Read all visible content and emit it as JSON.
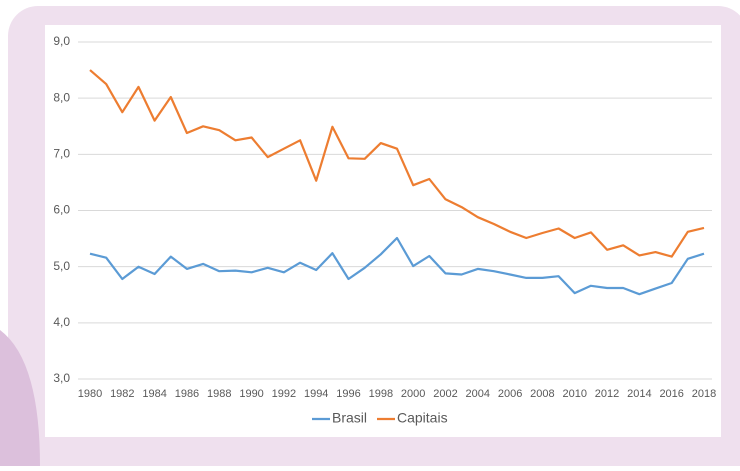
{
  "chart_data": {
    "type": "line",
    "categories": [
      "1980",
      null,
      "1982",
      null,
      "1984",
      null,
      "1986",
      null,
      "1988",
      null,
      "1990",
      null,
      "1992",
      null,
      "1994",
      null,
      "1996",
      null,
      "1998",
      null,
      "2000",
      null,
      "2002",
      null,
      "2004",
      null,
      "2006",
      null,
      "2008",
      null,
      "2010",
      null,
      "2012",
      null,
      "2014",
      null,
      "2016",
      null,
      "2018"
    ],
    "series": [
      {
        "name": "Brasil",
        "color": "#5b9bd5",
        "values": [
          5.23,
          5.16,
          4.78,
          5.0,
          4.87,
          5.18,
          4.96,
          5.05,
          4.92,
          4.93,
          4.9,
          4.98,
          4.9,
          5.07,
          4.94,
          5.24,
          4.78,
          4.98,
          5.22,
          5.51,
          5.01,
          5.19,
          4.88,
          4.86,
          4.96,
          4.92,
          4.86,
          4.8,
          4.8,
          4.83,
          4.53,
          4.66,
          4.62,
          4.62,
          4.51,
          4.61,
          4.71,
          5.14,
          5.23
        ]
      },
      {
        "name": "Capitais",
        "color": "#ed7d31",
        "values": [
          8.5,
          8.25,
          7.75,
          8.2,
          7.6,
          8.02,
          7.38,
          7.5,
          7.43,
          7.25,
          7.3,
          6.95,
          7.1,
          7.25,
          6.53,
          7.49,
          6.93,
          6.92,
          7.2,
          7.1,
          6.45,
          6.56,
          6.2,
          6.06,
          5.88,
          5.76,
          5.62,
          5.51,
          5.6,
          5.68,
          5.51,
          5.61,
          5.3,
          5.38,
          5.2,
          5.26,
          5.18,
          5.62,
          5.69
        ]
      }
    ],
    "ylim": [
      3,
      9
    ],
    "yticks": [
      {
        "value": 3,
        "label": "3,0"
      },
      {
        "value": 4,
        "label": "4,0"
      },
      {
        "value": 5,
        "label": "5,0"
      },
      {
        "value": 6,
        "label": "6,0"
      },
      {
        "value": 7,
        "label": "7,0"
      },
      {
        "value": 8,
        "label": "8,0"
      },
      {
        "value": 9,
        "label": "9,0"
      }
    ],
    "grid": true,
    "legend": "bottom"
  }
}
